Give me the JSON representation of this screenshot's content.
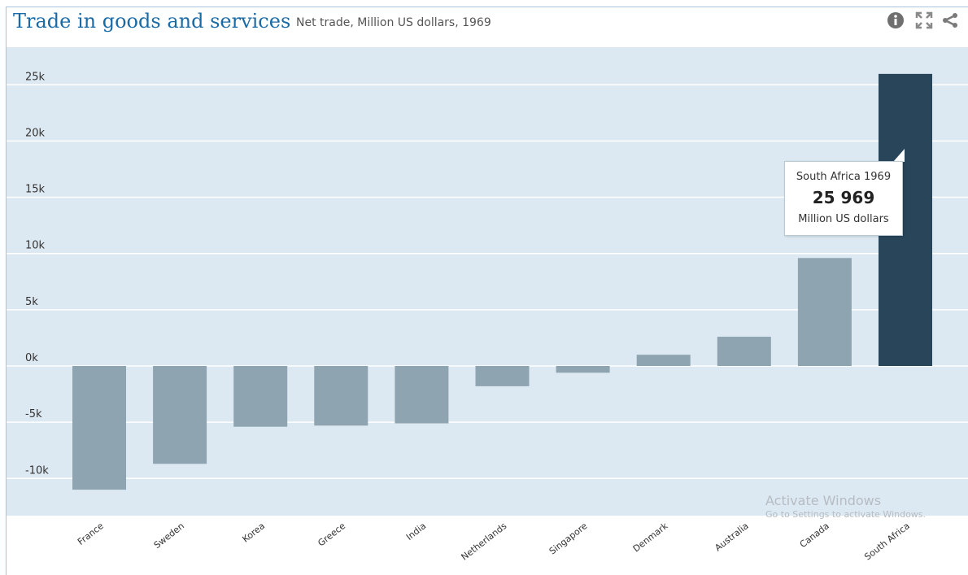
{
  "header": {
    "title": "Trade in goods and services",
    "subtitle": "Net trade, Million US dollars, 1969",
    "icons": [
      "info-icon",
      "fullscreen-icon",
      "share-icon"
    ]
  },
  "colors": {
    "title": "#1a6aa6",
    "plot_background": "#dde9f2",
    "bar": "#8fa4b1",
    "bar_highlight": "#29455a",
    "gridline": "#ffffff"
  },
  "chart_data": {
    "type": "bar",
    "title": "Trade in goods and services",
    "subtitle": "Net trade, Million US dollars, 1969",
    "categories": [
      "France",
      "Sweden",
      "Korea",
      "Greece",
      "India",
      "Netherlands",
      "Singapore",
      "Denmark",
      "Australia",
      "Canada",
      "South Africa"
    ],
    "values": [
      -11000,
      -8700,
      -5400,
      -5300,
      -5100,
      -1800,
      -600,
      1000,
      2600,
      9600,
      25969
    ],
    "highlighted": "South Africa",
    "y_ticks": [
      -10000,
      -5000,
      0,
      5000,
      10000,
      15000,
      20000,
      25000
    ],
    "y_tick_labels": [
      "-10k",
      "-5k",
      "0k",
      "5k",
      "10k",
      "15k",
      "20k",
      "25k"
    ],
    "ylim": [
      -13000,
      28000
    ],
    "grid": true,
    "legend": "none"
  },
  "tooltip": {
    "name": "South Africa 1969",
    "value": "25 969",
    "unit": "Million US dollars"
  },
  "watermark": {
    "line1": "Activate Windows",
    "line2": "Go to Settings to activate Windows."
  }
}
